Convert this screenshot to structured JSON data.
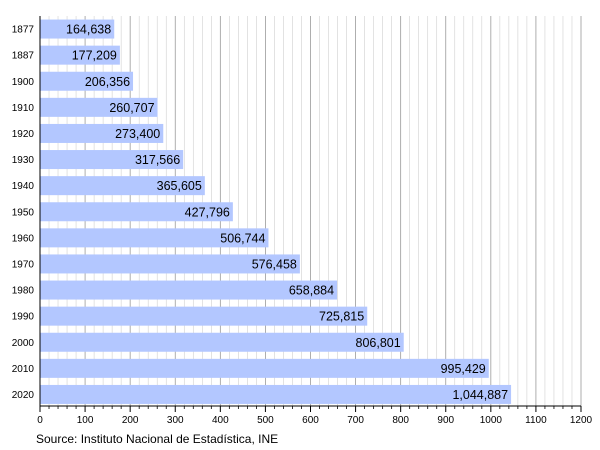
{
  "chart_data": {
    "type": "bar",
    "orientation": "horizontal",
    "categories": [
      "1877",
      "1887",
      "1900",
      "1910",
      "1920",
      "1930",
      "1940",
      "1950",
      "1960",
      "1970",
      "1980",
      "1990",
      "2000",
      "2010",
      "2020"
    ],
    "values": [
      164638,
      177209,
      206356,
      260707,
      273400,
      317566,
      365605,
      427796,
      506744,
      576458,
      658884,
      725815,
      806801,
      995429,
      1044887
    ],
    "value_labels": [
      "164,638",
      "177,209",
      "206,356",
      "260,707",
      "273,400",
      "317,566",
      "365,605",
      "427,796",
      "506,744",
      "576,458",
      "658,884",
      "725,815",
      "806,801",
      "995,429",
      "1,044,887"
    ],
    "x_ticks": [
      "0",
      "100",
      "200",
      "300",
      "400",
      "500",
      "600",
      "700",
      "800",
      "900",
      "1000",
      "1100",
      "1200"
    ],
    "x_tick_values": [
      0,
      100,
      200,
      300,
      400,
      500,
      600,
      700,
      800,
      900,
      1000,
      1100,
      1200
    ],
    "x_unit_divisor": 1000,
    "xlim": [
      0,
      1200
    ],
    "grid": true,
    "bar_color": "#b3c7ff",
    "grid_major_color": "#9a9a9a",
    "grid_minor_color": "#d0d0d0"
  },
  "source": "Source: Instituto Nacional de Estadística, INE"
}
